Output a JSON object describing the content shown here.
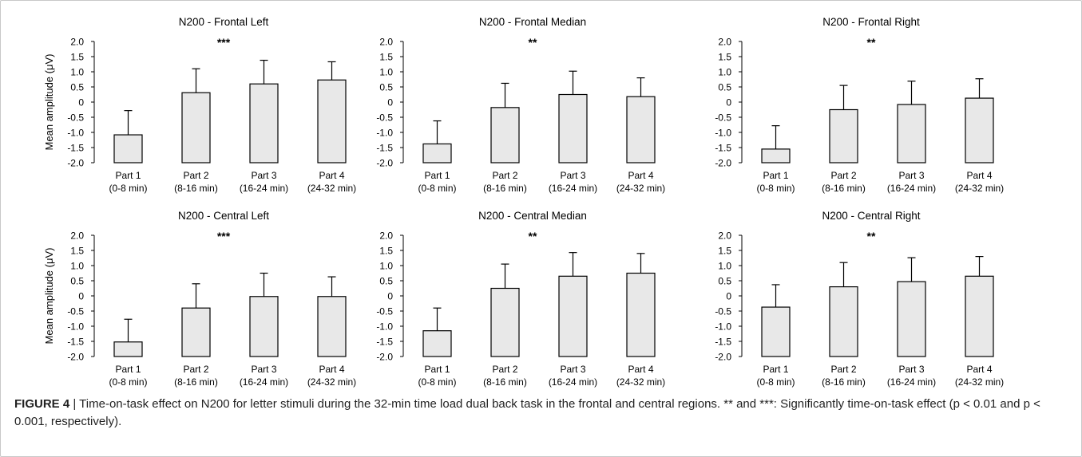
{
  "chart_data": [
    {
      "type": "bar",
      "title": "N200 - Frontal Left",
      "significance": "***",
      "ylabel": "Mean amplitude (μV)",
      "ylim": [
        -2.0,
        2.0
      ],
      "yticks": [
        "2.0",
        "1.5",
        "1.0",
        "0.5",
        "0",
        "-0.5",
        "-1.0",
        "-1.5",
        "-2.0"
      ],
      "categories": [
        "Part 1",
        "Part 2",
        "Part 3",
        "Part 4"
      ],
      "category_sublabels": [
        "(0-8 min)",
        "(8-16 min)",
        "(16-24 min)",
        "(24-32 min)"
      ],
      "values": [
        -1.08,
        0.31,
        0.6,
        0.73
      ],
      "error_upper": [
        -0.28,
        1.1,
        1.38,
        1.33
      ]
    },
    {
      "type": "bar",
      "title": "N200 - Frontal Median",
      "significance": "**",
      "ylabel": "",
      "ylim": [
        -2.0,
        2.0
      ],
      "yticks": [
        "2.0",
        "1.5",
        "1.0",
        "0.5",
        "0",
        "-0.5",
        "-1.0",
        "-1.5",
        "-2.0"
      ],
      "categories": [
        "Part 1",
        "Part 2",
        "Part 3",
        "Part 4"
      ],
      "category_sublabels": [
        "(0-8 min)",
        "(8-16 min)",
        "(16-24 min)",
        "(24-32 min)"
      ],
      "values": [
        -1.38,
        -0.18,
        0.25,
        0.18
      ],
      "error_upper": [
        -0.62,
        0.62,
        1.02,
        0.8
      ]
    },
    {
      "type": "bar",
      "title": "N200 - Frontal Right",
      "significance": "**",
      "ylabel": "",
      "ylim": [
        -2.0,
        2.0
      ],
      "yticks": [
        "2.0",
        "1.5",
        "1.0",
        "0.5",
        "0",
        "-0.5",
        "-1.0",
        "-1.5",
        "-2.0"
      ],
      "categories": [
        "Part 1",
        "Part 2",
        "Part 3",
        "Part 4"
      ],
      "category_sublabels": [
        "(0-8 min)",
        "(8-16 min)",
        "(16-24 min)",
        "(24-32 min)"
      ],
      "values": [
        -1.55,
        -0.25,
        -0.08,
        0.13
      ],
      "error_upper": [
        -0.78,
        0.55,
        0.69,
        0.77
      ]
    },
    {
      "type": "bar",
      "title": "N200 - Central Left",
      "significance": "***",
      "ylabel": "Mean amplitude (μV)",
      "ylim": [
        -2.0,
        2.0
      ],
      "yticks": [
        "2.0",
        "1.5",
        "1.0",
        "0.5",
        "0",
        "-0.5",
        "-1.0",
        "-1.5",
        "-2.0"
      ],
      "categories": [
        "Part 1",
        "Part 2",
        "Part 3",
        "Part 4"
      ],
      "category_sublabels": [
        "(0-8 min)",
        "(8-16 min)",
        "(16-24 min)",
        "(24-32 min)"
      ],
      "values": [
        -1.52,
        -0.4,
        -0.02,
        -0.02
      ],
      "error_upper": [
        -0.77,
        0.4,
        0.75,
        0.63
      ]
    },
    {
      "type": "bar",
      "title": "N200 - Central Median",
      "significance": "**",
      "ylabel": "",
      "ylim": [
        -2.0,
        2.0
      ],
      "yticks": [
        "2.0",
        "1.5",
        "1.0",
        "0.5",
        "0",
        "-0.5",
        "-1.0",
        "-1.5",
        "-2.0"
      ],
      "categories": [
        "Part 1",
        "Part 2",
        "Part 3",
        "Part 4"
      ],
      "category_sublabels": [
        "(0-8 min)",
        "(8-16 min)",
        "(16-24 min)",
        "(24-32 min)"
      ],
      "values": [
        -1.15,
        0.25,
        0.65,
        0.75
      ],
      "error_upper": [
        -0.4,
        1.05,
        1.43,
        1.4
      ]
    },
    {
      "type": "bar",
      "title": "N200 - Central Right",
      "significance": "**",
      "ylabel": "",
      "ylim": [
        -2.0,
        2.0
      ],
      "yticks": [
        "2.0",
        "1.5",
        "1.0",
        "0.5",
        "0",
        "-0.5",
        "-1.0",
        "-1.5",
        "-2.0"
      ],
      "categories": [
        "Part 1",
        "Part 2",
        "Part 3",
        "Part 4"
      ],
      "category_sublabels": [
        "(0-8 min)",
        "(8-16 min)",
        "(16-24 min)",
        "(24-32 min)"
      ],
      "values": [
        -0.37,
        0.3,
        0.47,
        0.65
      ],
      "error_upper": [
        0.37,
        1.1,
        1.26,
        1.3
      ]
    }
  ],
  "colors": {
    "bar_fill": "#e8e8e8",
    "bar_stroke": "#000000",
    "axis": "#000000"
  },
  "caption": {
    "label": "FIGURE 4",
    "separator": "|",
    "text": "Time-on-task effect on N200 for letter stimuli during the 32-min time load dual back task in the frontal and central regions. ** and ***: Significantly time-on-task effect (p < 0.01 and p < 0.001, respectively)."
  }
}
